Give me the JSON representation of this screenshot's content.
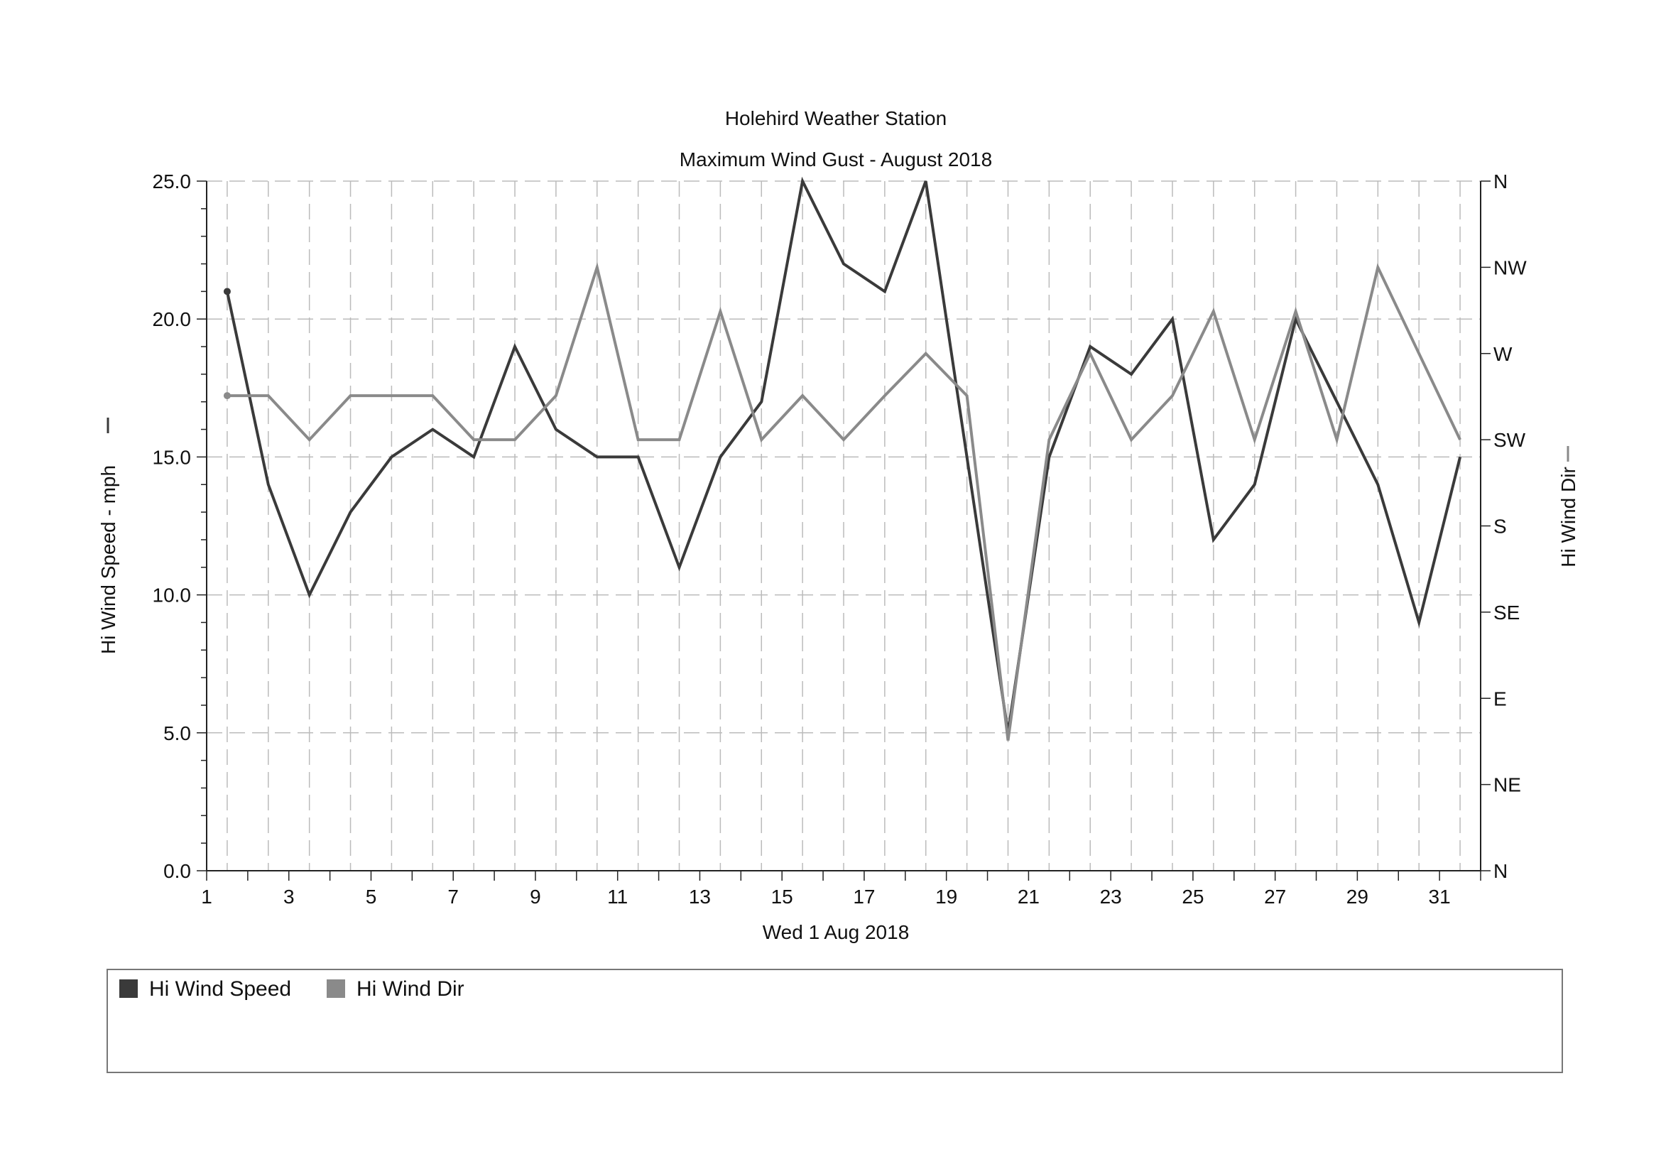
{
  "chart_data": {
    "type": "line",
    "title": "Holehird Weather Station",
    "subtitle": "Maximum Wind Gust - August 2018",
    "xlabel": "Wed 1 Aug 2018",
    "ylabel_left": "Hi Wind Speed - mph",
    "ylabel_right": "Hi Wind Dir",
    "x": [
      1,
      2,
      3,
      4,
      5,
      6,
      7,
      8,
      9,
      10,
      11,
      12,
      13,
      14,
      15,
      16,
      17,
      18,
      19,
      20,
      21,
      22,
      23,
      24,
      25,
      26,
      27,
      28,
      29,
      30,
      31
    ],
    "x_ticks": [
      "1",
      "3",
      "5",
      "7",
      "9",
      "11",
      "13",
      "15",
      "17",
      "19",
      "21",
      "23",
      "25",
      "27",
      "29",
      "31"
    ],
    "y_left_ticks": [
      "0.0",
      "5.0",
      "10.0",
      "15.0",
      "20.0",
      "25.0"
    ],
    "ylim_left": [
      0,
      25
    ],
    "y_right_ticks": [
      "N",
      "NE",
      "E",
      "SE",
      "S",
      "SW",
      "W",
      "NW",
      "N"
    ],
    "ylim_right_degrees": [
      0,
      360
    ],
    "grid": true,
    "legend_position": "bottom",
    "series": [
      {
        "name": "Hi Wind Speed",
        "axis": "left",
        "color": "#3a3a3a",
        "values": [
          21,
          14,
          10,
          13,
          15,
          16,
          15,
          19,
          16,
          15,
          15,
          11,
          15,
          17,
          25,
          22,
          21,
          25,
          15,
          5,
          15,
          19,
          18,
          20,
          12,
          14,
          20,
          17,
          14,
          9,
          15
        ]
      },
      {
        "name": "Hi Wind Dir",
        "axis": "right",
        "color": "#8a8a8a",
        "values": [
          248,
          248,
          225,
          248,
          248,
          248,
          225,
          225,
          248,
          315,
          225,
          225,
          292,
          225,
          248,
          225,
          248,
          270,
          248,
          68,
          225,
          270,
          225,
          248,
          292,
          225,
          292,
          225,
          315,
          270,
          225
        ]
      }
    ]
  }
}
